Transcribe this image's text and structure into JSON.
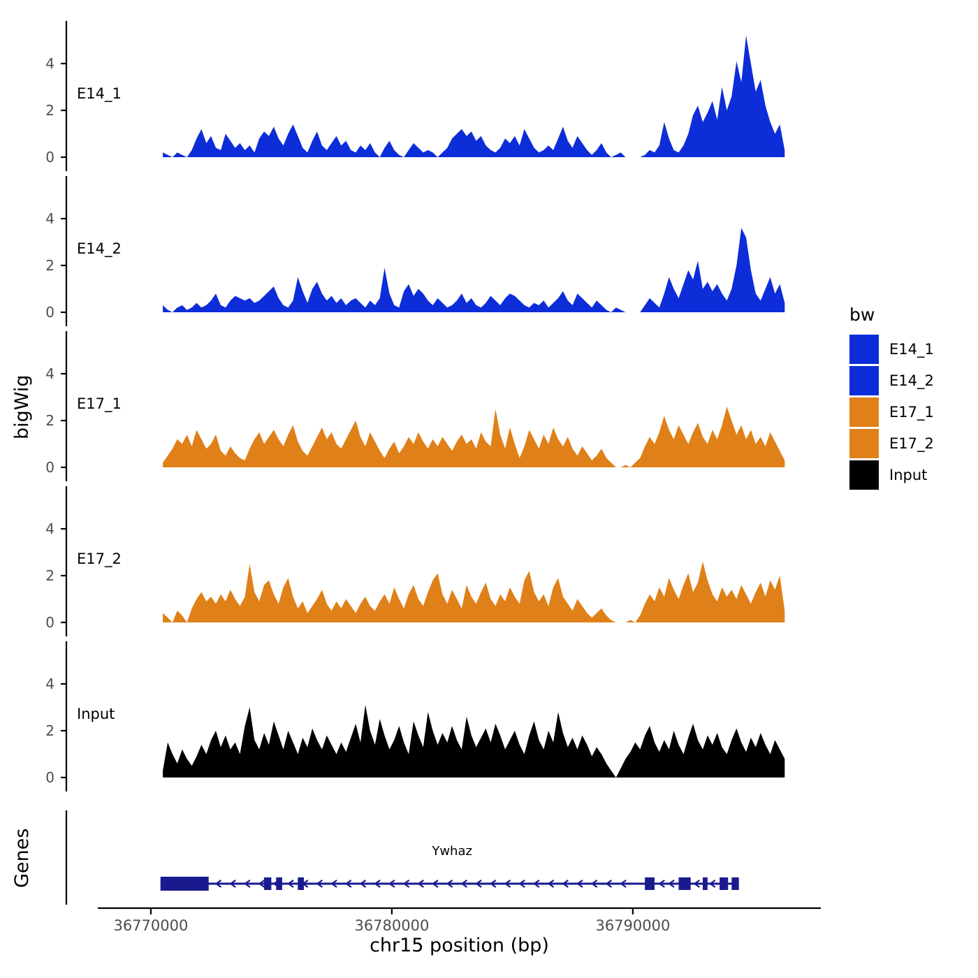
{
  "figure": {
    "ylabel_tracks": "bigWig",
    "ylabel_genes": "Genes",
    "xlabel": "chr15 position (bp)"
  },
  "legend": {
    "title": "bw",
    "entries": [
      {
        "label": "E14_1",
        "color": "#0D2DD8"
      },
      {
        "label": "E14_2",
        "color": "#0D2DD8"
      },
      {
        "label": "E17_1",
        "color": "#E08019"
      },
      {
        "label": "E17_2",
        "color": "#E08019"
      },
      {
        "label": "Input",
        "color": "#000000"
      }
    ]
  },
  "chart_data": {
    "type": "area",
    "title": "",
    "xlabel": "chr15 position (bp)",
    "ylabel": "bigWig",
    "xlim": [
      36767800,
      36797800
    ],
    "ylim": [
      0,
      5.8
    ],
    "x_ticks": [
      36770000,
      36780000,
      36790000
    ],
    "x_tick_labels": [
      "36770000",
      "36780000",
      "36790000"
    ],
    "y_ticks": [
      0,
      2,
      4
    ],
    "x_start": 36770500,
    "x_step": 200,
    "series": [
      {
        "name": "E14_1",
        "color": "#0D2DD8",
        "values": [
          0.2,
          0.1,
          0,
          0.2,
          0.1,
          0,
          0.3,
          0.8,
          1.2,
          0.6,
          0.9,
          0.4,
          0.3,
          1.0,
          0.7,
          0.4,
          0.6,
          0.3,
          0.5,
          0.2,
          0.8,
          1.1,
          0.9,
          1.3,
          0.8,
          0.5,
          1.0,
          1.4,
          0.9,
          0.4,
          0.2,
          0.7,
          1.1,
          0.5,
          0.3,
          0.6,
          0.9,
          0.5,
          0.7,
          0.3,
          0.2,
          0.5,
          0.3,
          0.6,
          0.2,
          0,
          0.4,
          0.7,
          0.3,
          0.1,
          0,
          0.3,
          0.6,
          0.4,
          0.2,
          0.3,
          0.2,
          0,
          0.2,
          0.4,
          0.8,
          1.0,
          1.2,
          0.9,
          1.1,
          0.7,
          0.9,
          0.5,
          0.3,
          0.2,
          0.4,
          0.8,
          0.6,
          0.9,
          0.5,
          1.2,
          0.8,
          0.4,
          0.2,
          0.3,
          0.5,
          0.3,
          0.8,
          1.3,
          0.7,
          0.4,
          0.9,
          0.6,
          0.3,
          0.1,
          0.3,
          0.6,
          0.2,
          0,
          0.1,
          0.2,
          0,
          0,
          0,
          0,
          0.1,
          0.3,
          0.2,
          0.5,
          1.5,
          0.8,
          0.3,
          0.2,
          0.5,
          1.0,
          1.8,
          2.2,
          1.5,
          1.9,
          2.4,
          1.6,
          3.0,
          2.0,
          2.6,
          4.1,
          3.2,
          5.2,
          4.0,
          2.8,
          3.3,
          2.2,
          1.5,
          1.0,
          1.4,
          0.3
        ]
      },
      {
        "name": "E14_2",
        "color": "#0D2DD8",
        "values": [
          0.3,
          0.1,
          0,
          0.2,
          0.3,
          0.1,
          0.2,
          0.4,
          0.2,
          0.3,
          0.5,
          0.8,
          0.3,
          0.2,
          0.5,
          0.7,
          0.6,
          0.5,
          0.6,
          0.4,
          0.5,
          0.7,
          0.9,
          1.1,
          0.6,
          0.3,
          0.2,
          0.5,
          1.5,
          0.9,
          0.4,
          1.0,
          1.3,
          0.8,
          0.5,
          0.7,
          0.4,
          0.6,
          0.3,
          0.5,
          0.6,
          0.4,
          0.2,
          0.5,
          0.3,
          0.6,
          1.9,
          0.8,
          0.3,
          0.2,
          0.9,
          1.2,
          0.7,
          1.0,
          0.8,
          0.5,
          0.3,
          0.6,
          0.4,
          0.2,
          0.3,
          0.5,
          0.8,
          0.4,
          0.6,
          0.3,
          0.2,
          0.4,
          0.7,
          0.5,
          0.3,
          0.6,
          0.8,
          0.7,
          0.5,
          0.3,
          0.2,
          0.4,
          0.3,
          0.5,
          0.2,
          0.4,
          0.6,
          0.9,
          0.5,
          0.3,
          0.8,
          0.6,
          0.4,
          0.2,
          0.5,
          0.3,
          0.1,
          0,
          0.2,
          0.1,
          0,
          0,
          0,
          0,
          0.3,
          0.6,
          0.4,
          0.2,
          0.8,
          1.5,
          1.0,
          0.6,
          1.2,
          1.8,
          1.4,
          2.2,
          1.0,
          1.3,
          0.9,
          1.2,
          0.8,
          0.5,
          1.0,
          2.0,
          3.6,
          3.2,
          1.8,
          0.8,
          0.5,
          1.0,
          1.5,
          0.8,
          1.2,
          0.4
        ]
      },
      {
        "name": "E17_1",
        "color": "#E08019",
        "values": [
          0.2,
          0.5,
          0.8,
          1.2,
          1.0,
          1.4,
          0.9,
          1.6,
          1.2,
          0.8,
          1.0,
          1.4,
          0.7,
          0.5,
          0.9,
          0.6,
          0.4,
          0.3,
          0.8,
          1.2,
          1.5,
          1.0,
          1.3,
          1.6,
          1.2,
          0.9,
          1.4,
          1.8,
          1.1,
          0.7,
          0.5,
          0.9,
          1.3,
          1.7,
          1.2,
          1.5,
          1.0,
          0.8,
          1.2,
          1.6,
          2.0,
          1.3,
          0.9,
          1.5,
          1.1,
          0.7,
          0.4,
          0.8,
          1.1,
          0.6,
          0.9,
          1.3,
          1.0,
          1.5,
          1.1,
          0.8,
          1.2,
          0.9,
          1.3,
          1.0,
          0.7,
          1.1,
          1.4,
          1.0,
          1.2,
          0.8,
          1.5,
          1.1,
          0.9,
          2.5,
          1.4,
          0.8,
          1.7,
          1.0,
          0.4,
          0.9,
          1.6,
          1.2,
          0.8,
          1.4,
          1.0,
          1.7,
          1.2,
          0.9,
          1.3,
          0.8,
          0.5,
          0.9,
          0.6,
          0.3,
          0.5,
          0.8,
          0.4,
          0.2,
          0,
          0,
          0.1,
          0,
          0.2,
          0.4,
          0.9,
          1.3,
          1.0,
          1.5,
          2.2,
          1.6,
          1.2,
          1.8,
          1.4,
          1.0,
          1.5,
          1.9,
          1.3,
          1.0,
          1.6,
          1.2,
          1.8,
          2.6,
          2.0,
          1.4,
          1.8,
          1.2,
          1.6,
          1.0,
          1.3,
          0.9,
          1.5,
          1.1,
          0.7,
          0.3
        ]
      },
      {
        "name": "E17_2",
        "color": "#E08019",
        "values": [
          0.4,
          0.2,
          0,
          0.5,
          0.3,
          0,
          0.6,
          1.0,
          1.3,
          0.9,
          1.1,
          0.8,
          1.2,
          0.9,
          1.4,
          1.0,
          0.7,
          1.1,
          2.5,
          1.3,
          0.9,
          1.6,
          1.8,
          1.2,
          0.8,
          1.5,
          1.9,
          1.1,
          0.6,
          0.9,
          0.4,
          0.7,
          1.0,
          1.4,
          0.8,
          0.5,
          0.9,
          0.6,
          1.0,
          0.7,
          0.4,
          0.8,
          1.1,
          0.7,
          0.5,
          0.9,
          1.2,
          0.8,
          1.5,
          1.0,
          0.6,
          1.2,
          1.6,
          1.0,
          0.7,
          1.3,
          1.8,
          2.1,
          1.2,
          0.8,
          1.4,
          1.0,
          0.6,
          1.6,
          1.1,
          0.8,
          1.3,
          1.7,
          1.0,
          0.7,
          1.2,
          0.9,
          1.5,
          1.1,
          0.8,
          1.8,
          2.2,
          1.3,
          0.9,
          1.2,
          0.7,
          1.5,
          1.9,
          1.1,
          0.8,
          0.5,
          1.0,
          0.7,
          0.4,
          0.2,
          0.4,
          0.6,
          0.3,
          0.1,
          0,
          0,
          0,
          0.1,
          0,
          0.3,
          0.8,
          1.2,
          0.9,
          1.5,
          1.1,
          1.9,
          1.4,
          1.0,
          1.6,
          2.1,
          1.3,
          1.7,
          2.6,
          1.8,
          1.2,
          0.9,
          1.5,
          1.1,
          1.4,
          1.0,
          1.6,
          1.2,
          0.8,
          1.3,
          1.7,
          1.1,
          1.8,
          1.4,
          2.0,
          0.5
        ]
      },
      {
        "name": "Input",
        "color": "#000000",
        "values": [
          0.3,
          1.5,
          1.0,
          0.6,
          1.2,
          0.8,
          0.5,
          0.9,
          1.4,
          1.0,
          1.6,
          2.0,
          1.3,
          1.8,
          1.2,
          1.5,
          1.0,
          2.2,
          3.0,
          1.6,
          1.2,
          1.9,
          1.4,
          2.4,
          1.8,
          1.2,
          2.0,
          1.5,
          1.0,
          1.7,
          1.3,
          2.1,
          1.6,
          1.2,
          1.8,
          1.4,
          1.0,
          1.5,
          1.1,
          1.7,
          2.3,
          1.5,
          3.1,
          2.0,
          1.4,
          2.5,
          1.8,
          1.2,
          1.6,
          2.2,
          1.5,
          1.0,
          2.4,
          1.8,
          1.3,
          2.8,
          2.0,
          1.4,
          1.9,
          1.5,
          2.2,
          1.6,
          1.2,
          2.6,
          1.8,
          1.3,
          1.7,
          2.1,
          1.5,
          2.3,
          1.8,
          1.2,
          1.6,
          2.0,
          1.4,
          1.0,
          1.8,
          2.4,
          1.6,
          1.2,
          2.0,
          1.5,
          2.8,
          1.9,
          1.3,
          1.7,
          1.2,
          1.8,
          1.4,
          0.9,
          1.3,
          1.0,
          0.6,
          0.3,
          0,
          0.4,
          0.8,
          1.1,
          1.5,
          1.2,
          1.8,
          2.2,
          1.5,
          1.1,
          1.6,
          1.2,
          2.0,
          1.4,
          1.0,
          1.7,
          2.3,
          1.6,
          1.2,
          1.8,
          1.4,
          1.9,
          1.3,
          1.0,
          1.6,
          2.1,
          1.5,
          1.1,
          1.7,
          1.3,
          1.9,
          1.4,
          1.0,
          1.6,
          1.2,
          0.8
        ]
      }
    ],
    "gene_track": {
      "name": "Ywhaz",
      "strand": "-",
      "color": "#1A1A8F",
      "line": [
        36770400,
        36794400
      ],
      "label_pos": 36782500,
      "exons": [
        [
          36770400,
          36772400,
          20
        ],
        [
          36774700,
          36775000,
          18
        ],
        [
          36775200,
          36775450,
          18
        ],
        [
          36776100,
          36776350,
          18
        ],
        [
          36790500,
          36790900,
          18
        ],
        [
          36791900,
          36792400,
          18
        ],
        [
          36792900,
          36793100,
          18
        ],
        [
          36793600,
          36793950,
          18
        ],
        [
          36794100,
          36794400,
          18
        ]
      ],
      "arrow_from": 36772800,
      "arrow_to": 36790000,
      "arrow_step": 600,
      "arrow_extra": [
        36791200,
        36791600,
        36792650,
        36793300
      ]
    }
  }
}
